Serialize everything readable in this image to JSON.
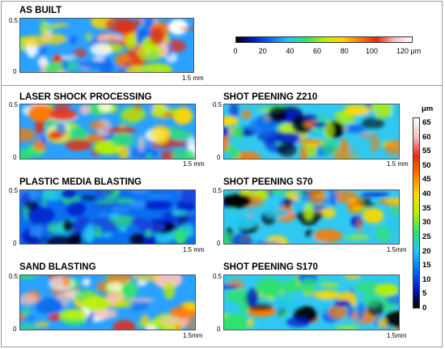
{
  "panels": {
    "as_built": {
      "title": "AS BUILT",
      "y_top": "0.5",
      "y_bottom": "0",
      "x_end": "1.5 mm",
      "palette": "hot"
    },
    "laser": {
      "title": "LASER SHOCK PROCESSING",
      "y_top": "0.5",
      "y_bottom": "0",
      "x_end": "1.5 mm",
      "palette": "hot"
    },
    "z210": {
      "title": "SHOT PEENING Z210",
      "y_top": "0.5",
      "y_bottom": "0",
      "x_end": "1.5 mm",
      "palette": "mixed"
    },
    "pmb": {
      "title": "PLASTIC MEDIA BLASTING",
      "y_top": "0.5",
      "y_bottom": "0",
      "x_end": "1.5 mm",
      "palette": "cold"
    },
    "s70": {
      "title": "SHOT PEENING S70",
      "y_top": "0.5",
      "y_bottom": "0",
      "x_end": "1.5mm",
      "palette": "mixed"
    },
    "sand": {
      "title": "SAND BLASTING",
      "y_top": "0.5",
      "y_bottom": "0",
      "x_end": "1.5mm",
      "palette": "hot"
    },
    "s170": {
      "title": "SHOT PEENING S170",
      "y_top": "0.5",
      "y_bottom": "0",
      "x_end": "1.5mm",
      "palette": "mixed"
    }
  },
  "colorbar_top": {
    "labels": [
      "0",
      "20",
      "40",
      "60",
      "80",
      "100",
      "120 μm"
    ],
    "min": 0,
    "max": 130
  },
  "colorbar_right": {
    "unit": "μm",
    "labels": [
      "65",
      "60",
      "55",
      "50",
      "45",
      "40",
      "35",
      "30",
      "25",
      "20",
      "15",
      "10",
      "5",
      "0"
    ],
    "min": 0,
    "max": 67
  },
  "colors": {
    "stops": [
      "#000000",
      "#0018c8",
      "#0a6ef0",
      "#22c8f0",
      "#30e070",
      "#b6f000",
      "#ffd800",
      "#ff7a00",
      "#e52b10",
      "#f4c0c0",
      "#ffffff"
    ]
  }
}
